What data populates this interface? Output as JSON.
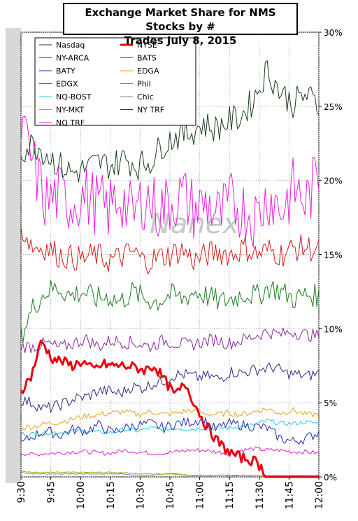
{
  "chart_data": {
    "type": "line",
    "title_lines": [
      "Exchange Market Share for NMS Stocks by #",
      "Trades July 8, 2015"
    ],
    "watermark": "Nanex",
    "xlabel": "",
    "ylabel": "",
    "x_ticks": [
      "9:30",
      "9:45",
      "10:00",
      "10:15",
      "10:30",
      "10:45",
      "11:00",
      "11:15",
      "11:30",
      "11:45",
      "12:00"
    ],
    "x_range_minutes": [
      0,
      150
    ],
    "y_ticks": [
      "0%",
      "5%",
      "10%",
      "15%",
      "20%",
      "25%",
      "30%"
    ],
    "ylim": [
      0,
      30
    ],
    "grid": true,
    "legend_placement": "top-left",
    "series": [
      {
        "name": "Nasdaq",
        "color": "#1a3d1a",
        "width": 1,
        "values": [
          22.0,
          22.5,
          21.8,
          21.0,
          20.5,
          20.8,
          21.2,
          21.0,
          21.5,
          21.0,
          21.3,
          22.5,
          23.0,
          23.2,
          23.8,
          23.5,
          24.0,
          24.3,
          25.5,
          27.5,
          26.0,
          25.2,
          25.8,
          25.0
        ]
      },
      {
        "name": "NYSE",
        "color": "#e8000e",
        "width": 3,
        "values": [
          5.8,
          6.8,
          9.2,
          8.0,
          7.8,
          7.5,
          7.8,
          7.2,
          7.6,
          7.5,
          7.5,
          7.4,
          7.2,
          7.5,
          6.5,
          5.5,
          6.3,
          4.8,
          3.5,
          2.5,
          1.8,
          1.4,
          1.2,
          1.0,
          0.0,
          0.0,
          0.0,
          0.0,
          0.0,
          0.0
        ]
      },
      {
        "name": "NY-ARCA",
        "color": "#d61b1b",
        "width": 1,
        "values": [
          16.8,
          15.5,
          15.5,
          15.0,
          14.8,
          14.7,
          15.0,
          14.6,
          14.8,
          15.2,
          14.5,
          14.8,
          15.0,
          15.3,
          14.6,
          15.0,
          15.2,
          15.0,
          15.5,
          15.0,
          15.3,
          15.0,
          15.4,
          15.5,
          15.2
        ]
      },
      {
        "name": "BATS",
        "color": "#1e7a1e",
        "width": 1,
        "values": [
          9.5,
          11.5,
          12.5,
          12.8,
          12.2,
          12.5,
          12.0,
          12.2,
          11.8,
          12.5,
          12.0,
          11.8,
          12.3,
          12.0,
          12.5,
          12.2,
          11.8,
          12.0,
          12.4,
          12.2,
          12.8,
          12.5,
          12.0,
          12.3,
          12.2
        ]
      },
      {
        "name": "BATY",
        "color": "#2a2a8a",
        "width": 1,
        "values": [
          5.2,
          5.0,
          4.6,
          4.7,
          5.0,
          5.3,
          5.4,
          5.8,
          5.8,
          5.6,
          6.1,
          6.0,
          6.3,
          6.5,
          6.9,
          6.9,
          6.7,
          6.8,
          6.6,
          7.1,
          7.0,
          7.2,
          7.3,
          7.4,
          7.0,
          6.9,
          6.8,
          7.0
        ]
      },
      {
        "name": "EDGA",
        "color": "#e6a21c",
        "width": 1,
        "values": [
          3.3,
          3.4,
          3.6,
          3.7,
          3.9,
          4.1,
          4.2,
          4.3,
          4.4,
          4.2,
          4.4,
          4.2,
          4.3,
          4.5,
          4.3,
          4.2,
          4.3,
          4.2,
          4.4,
          4.6,
          4.3,
          4.5,
          4.2,
          4.2
        ]
      },
      {
        "name": "EDGX",
        "color": "#8a2a9a",
        "width": 1,
        "values": [
          8.8,
          8.8,
          9.0,
          8.7,
          9.0,
          9.3,
          8.8,
          9.2,
          9.1,
          9.0,
          8.8,
          9.2,
          9.0,
          8.9,
          9.1,
          9.3,
          9.0,
          9.2,
          9.5,
          9.8,
          9.6,
          9.8,
          9.6,
          9.5
        ]
      },
      {
        "name": "Phil",
        "color": "#e020d0",
        "width": 1,
        "values": [
          1.6,
          1.5,
          1.6,
          1.6,
          1.7,
          1.7,
          1.6,
          1.6,
          1.8,
          1.7,
          1.6,
          1.6,
          1.7,
          1.8,
          1.8,
          1.7,
          1.6,
          1.8,
          1.9,
          1.8,
          1.8,
          1.7,
          1.7,
          1.6
        ]
      },
      {
        "name": "NQ-BOST",
        "color": "#24c9e0",
        "width": 1,
        "values": [
          2.9,
          2.9,
          3.0,
          3.0,
          3.1,
          3.1,
          3.0,
          3.0,
          3.2,
          3.1,
          3.3,
          3.2,
          3.3,
          3.2,
          3.3,
          3.3,
          3.3,
          3.4,
          3.5,
          3.8,
          3.6,
          3.6,
          3.7,
          3.6
        ]
      },
      {
        "name": "Chic",
        "color": "#808090",
        "width": 1,
        "values": [
          0.3,
          0.2,
          0.2,
          0.2,
          0.2,
          0.2,
          0.2,
          0.2,
          0.2,
          0.1,
          0.1,
          0.2,
          0.2,
          0.1,
          0.1,
          0.1,
          0.1,
          0.1,
          0.1,
          0.1,
          0.1,
          0.1,
          0.1,
          0.1
        ]
      },
      {
        "name": "NY-MKT",
        "color": "#a6a620",
        "width": 1,
        "values": [
          0.4,
          0.3,
          0.3,
          0.3,
          0.3,
          0.3,
          0.3,
          0.3,
          0.3,
          0.2,
          0.2,
          0.2,
          0.2,
          0.1,
          0.1,
          0.1,
          0.1,
          0.1,
          0.1,
          0.0,
          0.0,
          0.0,
          0.0,
          0.0
        ]
      },
      {
        "name": "NY TRF",
        "color": "#1c2ab0",
        "width": 1,
        "values": [
          2.2,
          2.8,
          3.1,
          2.8,
          3.2,
          3.1,
          3.5,
          3.0,
          3.3,
          3.5,
          3.6,
          3.3,
          3.6,
          3.7,
          3.9,
          3.2,
          3.6,
          3.5,
          3.4,
          3.3,
          2.6,
          2.4,
          2.6,
          3.0
        ]
      },
      {
        "name": "NQ TRF",
        "color": "#f018e0",
        "width": 1,
        "values": [
          23.5,
          21.0,
          18.5,
          19.0,
          18.5,
          19.0,
          18.5,
          18.0,
          19.0,
          17.5,
          19.0,
          18.0,
          18.5,
          19.0,
          18.0,
          18.5,
          17.5,
          18.5,
          18.0,
          17.5,
          19.0,
          18.0,
          19.5,
          18.5,
          20.5
        ]
      }
    ]
  }
}
